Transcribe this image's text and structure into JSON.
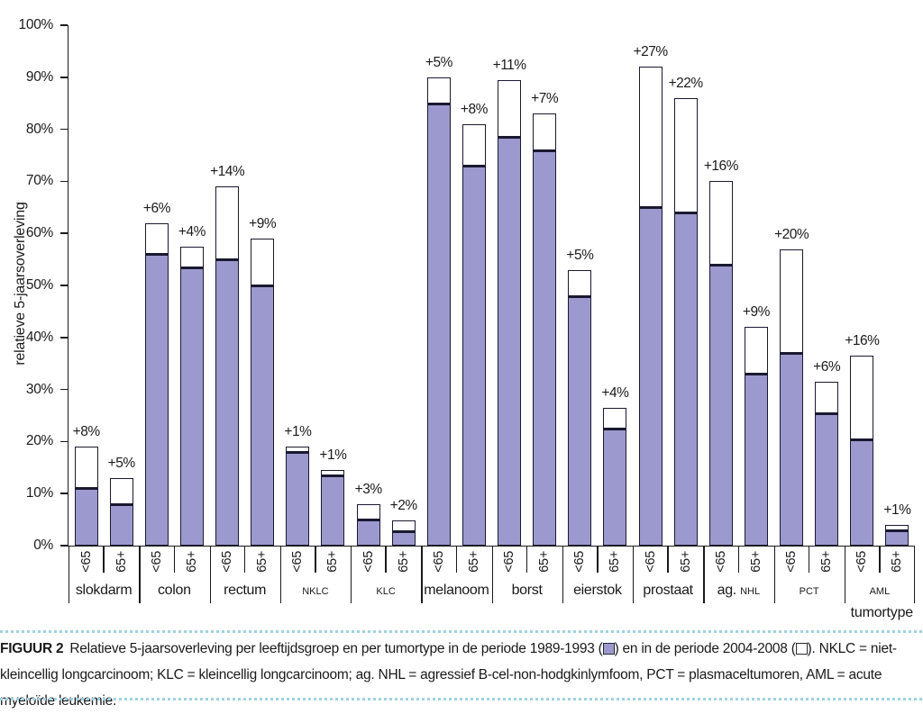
{
  "caption": {
    "label": "FIGUUR 2",
    "part1": "Relatieve 5-jaarsoverleving per leeftijdsgroep en per tumortype in de periode 1989-1993 (",
    "part2": ") en in de periode 2004-2008 (",
    "part3": "). NKLC = niet-kleincellig longcarcinoom; KLC = kleincellig longcarcinoom; ag. NHL = agressief B-cel-non-hodgkinlymfoom, PCT = plasmaceltumoren, AML = acute myeloïde leukemie."
  },
  "colors": {
    "bar_fill_1989_1993": "#9c99ce",
    "bar_increase_2004_2008": "#ffffff",
    "bar_border": "#1a1930",
    "dotted_rule": "#9ed2e2",
    "text": "#1a1a1a"
  },
  "chart_data": {
    "type": "bar",
    "stacked": true,
    "title": "",
    "ylabel": "relatieve 5-jaarsoverleving",
    "xlabel": "tumortype",
    "ylim": [
      0,
      100
    ],
    "grid": false,
    "ytick_labels": [
      "0%",
      "10%",
      "20%",
      "30%",
      "40%",
      "50%",
      "60%",
      "70%",
      "80%",
      "90%",
      "100%"
    ],
    "age_categories": [
      "<65",
      "65+"
    ],
    "series": [
      {
        "name": "relatieve 5-jaarsoverleving periode 1989-1993",
        "swatch": "filled"
      },
      {
        "name": "toename in periode 2004-2008",
        "swatch": "open"
      }
    ],
    "groups": [
      {
        "label": "slokdarm",
        "small": false,
        "bars": [
          {
            "age": "<65",
            "survival_1989_1993": 11,
            "increase": 8,
            "increase_label": "+8%"
          },
          {
            "age": "65+",
            "survival_1989_1993": 8,
            "increase": 5,
            "increase_label": "+5%"
          }
        ]
      },
      {
        "label": "colon",
        "small": false,
        "bars": [
          {
            "age": "<65",
            "survival_1989_1993": 56,
            "increase": 6,
            "increase_label": "+6%"
          },
          {
            "age": "65+",
            "survival_1989_1993": 53.5,
            "increase": 4,
            "increase_label": "+4%"
          }
        ]
      },
      {
        "label": "rectum",
        "small": false,
        "bars": [
          {
            "age": "<65",
            "survival_1989_1993": 55,
            "increase": 14,
            "increase_label": "+14%"
          },
          {
            "age": "65+",
            "survival_1989_1993": 50,
            "increase": 9,
            "increase_label": "+9%"
          }
        ]
      },
      {
        "label": "NKLC",
        "small": true,
        "bars": [
          {
            "age": "<65",
            "survival_1989_1993": 18,
            "increase": 1,
            "increase_label": "+1%"
          },
          {
            "age": "65+",
            "survival_1989_1993": 13.5,
            "increase": 1,
            "increase_label": "+1%"
          }
        ]
      },
      {
        "label": "KLC",
        "small": true,
        "bars": [
          {
            "age": "<65",
            "survival_1989_1993": 5,
            "increase": 3,
            "increase_label": "+3%"
          },
          {
            "age": "65+",
            "survival_1989_1993": 2.8,
            "increase": 2,
            "increase_label": "+2%"
          }
        ]
      },
      {
        "label": "melanoom",
        "small": false,
        "bars": [
          {
            "age": "<65",
            "survival_1989_1993": 85,
            "increase": 5,
            "increase_label": "+5%"
          },
          {
            "age": "65+",
            "survival_1989_1993": 73,
            "increase": 8,
            "increase_label": "+8%"
          }
        ]
      },
      {
        "label": "borst",
        "small": false,
        "bars": [
          {
            "age": "<65",
            "survival_1989_1993": 78.5,
            "increase": 11,
            "increase_label": "+11%"
          },
          {
            "age": "65+",
            "survival_1989_1993": 76,
            "increase": 7,
            "increase_label": "+7%"
          }
        ]
      },
      {
        "label": "eierstok",
        "small": false,
        "bars": [
          {
            "age": "<65",
            "survival_1989_1993": 48,
            "increase": 5,
            "increase_label": "+5%"
          },
          {
            "age": "65+",
            "survival_1989_1993": 22.5,
            "increase": 4,
            "increase_label": "+4%"
          }
        ]
      },
      {
        "label": "prostaat",
        "small": false,
        "bars": [
          {
            "age": "<65",
            "survival_1989_1993": 65,
            "increase": 27,
            "increase_label": "+27%"
          },
          {
            "age": "65+",
            "survival_1989_1993": 64,
            "increase": 22,
            "increase_label": "+22%"
          }
        ]
      },
      {
        "label": "ag. NHL",
        "small": false,
        "label_parts": [
          {
            "text": "ag. ",
            "small": false
          },
          {
            "text": "NHL",
            "small": true
          }
        ],
        "bars": [
          {
            "age": "<65",
            "survival_1989_1993": 54,
            "increase": 16,
            "increase_label": "+16%"
          },
          {
            "age": "65+",
            "survival_1989_1993": 33,
            "increase": 9,
            "increase_label": "+9%"
          }
        ]
      },
      {
        "label": "PCT",
        "small": true,
        "bars": [
          {
            "age": "<65",
            "survival_1989_1993": 37,
            "increase": 20,
            "increase_label": "+20%"
          },
          {
            "age": "65+",
            "survival_1989_1993": 25.5,
            "increase": 6,
            "increase_label": "+6%"
          }
        ]
      },
      {
        "label": "AML",
        "small": true,
        "bars": [
          {
            "age": "<65",
            "survival_1989_1993": 20.5,
            "increase": 16,
            "increase_label": "+16%"
          },
          {
            "age": "65+",
            "survival_1989_1993": 3,
            "increase": 1,
            "increase_label": "+1%"
          }
        ]
      }
    ]
  }
}
